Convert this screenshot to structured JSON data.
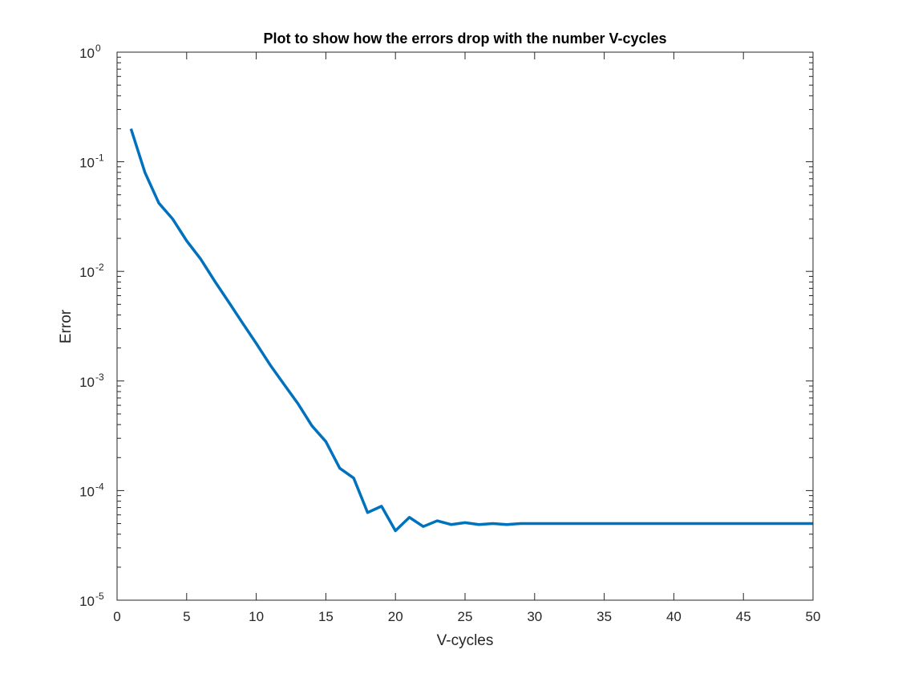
{
  "chart_data": {
    "type": "line",
    "title": "Plot to show how the errors drop with the number V-cycles",
    "xlabel": "V-cycles",
    "ylabel": "Error",
    "xlim": [
      0,
      50
    ],
    "ylim": [
      1e-05,
      1
    ],
    "yscale": "log",
    "x_ticks": [
      0,
      5,
      10,
      15,
      20,
      25,
      30,
      35,
      40,
      45,
      50
    ],
    "x_tick_labels": [
      "0",
      "5",
      "10",
      "15",
      "20",
      "25",
      "30",
      "35",
      "40",
      "45",
      "50"
    ],
    "y_ticks": [
      {
        "value": 1,
        "base": "10",
        "exp": "0"
      },
      {
        "value": 0.1,
        "base": "10",
        "exp": "-1"
      },
      {
        "value": 0.01,
        "base": "10",
        "exp": "-2"
      },
      {
        "value": 0.001,
        "base": "10",
        "exp": "-3"
      },
      {
        "value": 0.0001,
        "base": "10",
        "exp": "-4"
      },
      {
        "value": 1e-05,
        "base": "10",
        "exp": "-5"
      }
    ],
    "grid": false,
    "line_color": "#0072BD",
    "series": [
      {
        "x": [
          1,
          2,
          3,
          4,
          5,
          6,
          7,
          8,
          9,
          10,
          11,
          12,
          13,
          14,
          15,
          16,
          17,
          18,
          19,
          20,
          21,
          22,
          23,
          24,
          25,
          26,
          27,
          28,
          29,
          30,
          31,
          32,
          33,
          34,
          35,
          36,
          37,
          38,
          39,
          40,
          41,
          42,
          43,
          44,
          45,
          46,
          47,
          48,
          49,
          50
        ],
        "values": [
          0.2,
          0.08,
          0.042,
          0.03,
          0.019,
          0.013,
          0.0082,
          0.0053,
          0.0034,
          0.0022,
          0.0014,
          0.00093,
          0.00062,
          0.00039,
          0.00028,
          0.00016,
          0.00013,
          6.3e-05,
          7.2e-05,
          4.3e-05,
          5.7e-05,
          4.7e-05,
          5.3e-05,
          4.9e-05,
          5.1e-05,
          4.9e-05,
          5e-05,
          4.9e-05,
          5e-05,
          5e-05,
          5e-05,
          5e-05,
          5e-05,
          5e-05,
          5e-05,
          5e-05,
          5e-05,
          5e-05,
          5e-05,
          5e-05,
          5e-05,
          5e-05,
          5e-05,
          5e-05,
          5e-05,
          5e-05,
          5e-05,
          5e-05,
          5e-05,
          5e-05
        ]
      }
    ]
  }
}
